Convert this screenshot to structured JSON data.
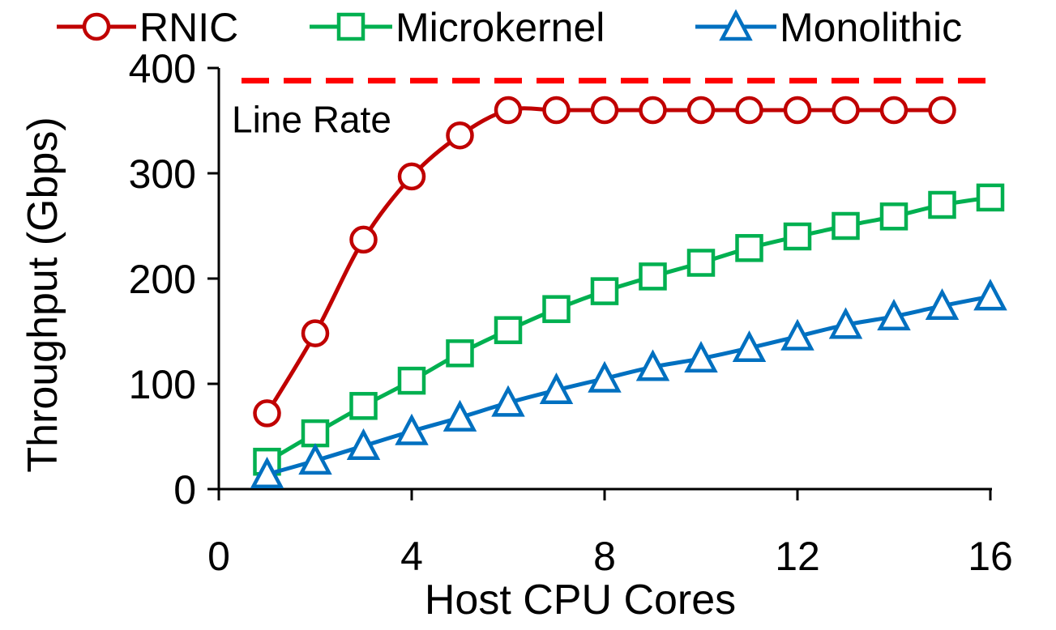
{
  "chart_data": {
    "type": "line",
    "xlabel": "Host CPU Cores",
    "ylabel": "Throughput (Gbps)",
    "xlim": [
      0,
      16
    ],
    "ylim": [
      0,
      400
    ],
    "xticks": [
      0,
      4,
      8,
      12,
      16
    ],
    "yticks": [
      0,
      100,
      200,
      300,
      400
    ],
    "x_tick_labels": [
      "0",
      "4",
      "8",
      "12",
      "16"
    ],
    "y_tick_labels": [
      "0",
      "100",
      "200",
      "300",
      "400"
    ],
    "grid": false,
    "legend_position": "top",
    "series": [
      {
        "name": "RNIC",
        "color": "#c00000",
        "marker": "circle",
        "x": [
          1,
          2,
          3,
          4,
          5,
          6,
          7,
          8,
          9,
          10,
          11,
          12,
          13,
          14,
          15
        ],
        "values": [
          72,
          148,
          237,
          297,
          336,
          360,
          360,
          360,
          360,
          360,
          360,
          360,
          360,
          360,
          360
        ]
      },
      {
        "name": "Microkernel",
        "color": "#00b050",
        "marker": "square",
        "x": [
          1,
          2,
          3,
          4,
          5,
          6,
          7,
          8,
          9,
          10,
          11,
          12,
          13,
          14,
          15,
          16
        ],
        "values": [
          26,
          53,
          79,
          103,
          129,
          151,
          171,
          188,
          202,
          215,
          229,
          240,
          250,
          259,
          270,
          277
        ]
      },
      {
        "name": "Monolithic",
        "color": "#0070c0",
        "marker": "triangle",
        "x": [
          1,
          2,
          3,
          4,
          5,
          6,
          7,
          8,
          9,
          10,
          11,
          12,
          13,
          14,
          15,
          16
        ],
        "values": [
          14,
          27,
          41,
          55,
          68,
          82,
          94,
          105,
          116,
          124,
          134,
          145,
          156,
          164,
          174,
          183
        ]
      }
    ],
    "reference_line": {
      "label": "Line Rate",
      "value": 388,
      "color": "#ff0000",
      "style": "dashed"
    }
  }
}
